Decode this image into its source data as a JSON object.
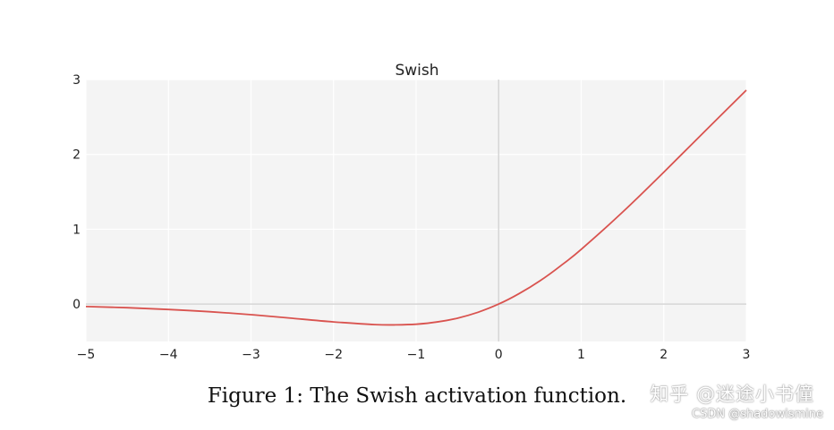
{
  "chart_data": {
    "type": "line",
    "title": "Swish",
    "xlabel": "",
    "ylabel": "",
    "xlim": [
      -5,
      3
    ],
    "ylim": [
      -0.5,
      3
    ],
    "x_ticks": [
      -5,
      -4,
      -3,
      -2,
      -1,
      0,
      1,
      2,
      3
    ],
    "x_tick_labels": [
      "−5",
      "−4",
      "−3",
      "−2",
      "−1",
      "0",
      "1",
      "2",
      "3"
    ],
    "y_ticks": [
      0,
      1,
      2,
      3
    ],
    "y_tick_labels": [
      "0",
      "1",
      "2",
      "3"
    ],
    "grid": true,
    "series": [
      {
        "color": "#d9534f",
        "x": [
          -5,
          -4.5,
          -4,
          -3.5,
          -3,
          -2.5,
          -2,
          -1.5,
          -1.25,
          -1,
          -0.75,
          -0.5,
          -0.25,
          0,
          0.25,
          0.5,
          0.75,
          1,
          1.5,
          2,
          2.5,
          3
        ],
        "y": [
          -0.033,
          -0.049,
          -0.072,
          -0.102,
          -0.142,
          -0.19,
          -0.238,
          -0.274,
          -0.278,
          -0.269,
          -0.24,
          -0.189,
          -0.109,
          0,
          0.141,
          0.311,
          0.51,
          0.731,
          1.227,
          1.762,
          2.312,
          2.858
        ]
      }
    ]
  },
  "caption": "Figure 1: The Swish activation function.",
  "watermark": {
    "main": "知乎 @迷途小书僮",
    "sub": "CSDN @shadowismine"
  },
  "colors": {
    "plot_background": "#f4f4f4",
    "grid": "#ffffff",
    "zero_line": "#d6d6d6",
    "line": "#d9534f"
  }
}
